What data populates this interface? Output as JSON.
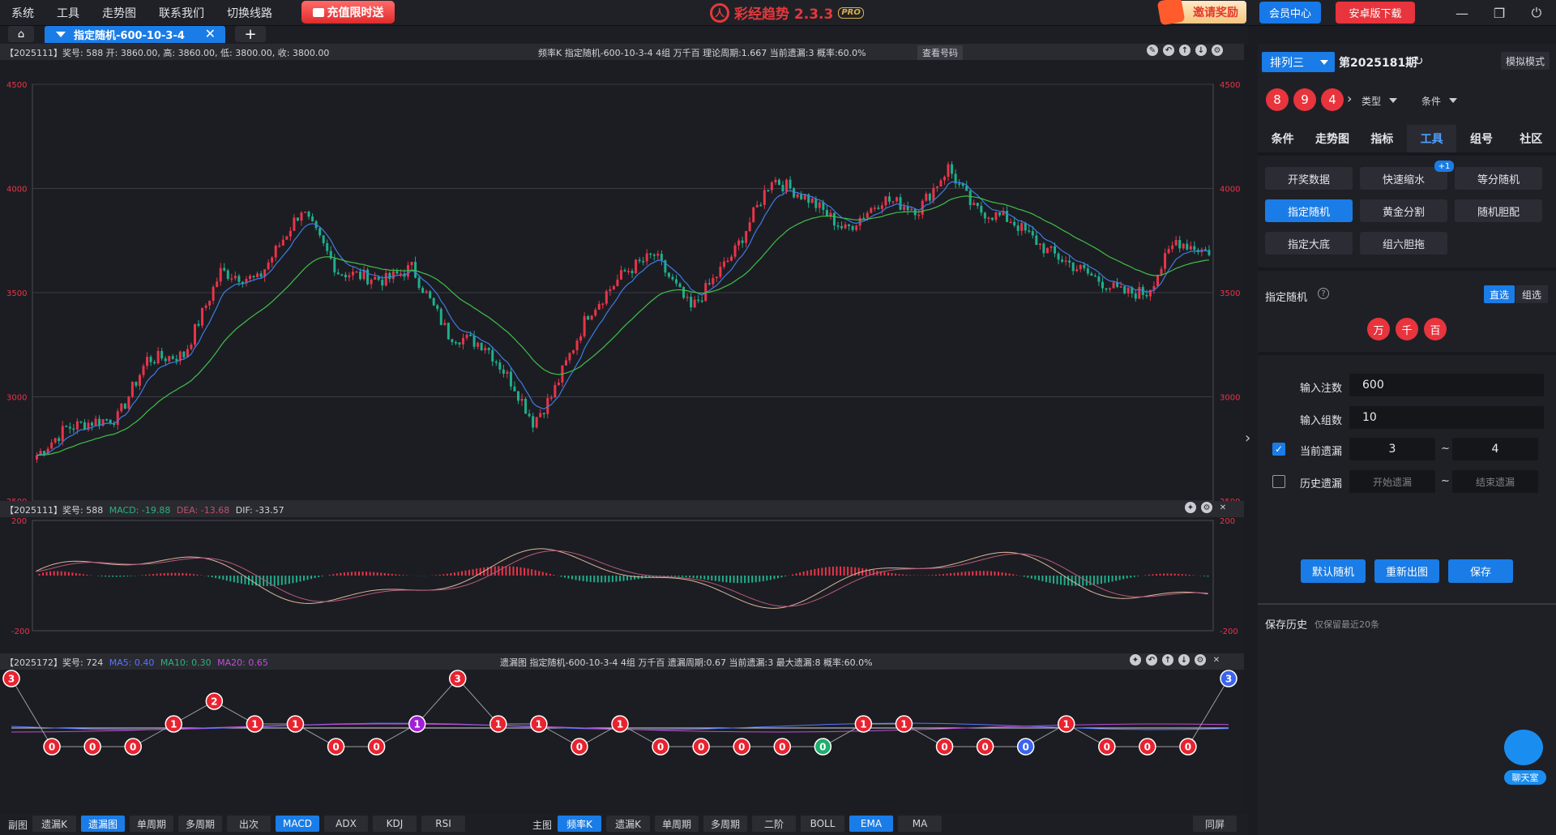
{
  "menu": [
    "系统",
    "工具",
    "走势图",
    "联系我们",
    "切换线路"
  ],
  "promo_label": "充值限时送",
  "app": {
    "name": "彩经趋势 2.3.3",
    "badge": "PRO"
  },
  "invite_label": "邀请奖励",
  "vip_label": "会员中心",
  "android_label": "安卓版下载",
  "tab": {
    "label": "指定随机-600-10-3-4"
  },
  "top_panel": {
    "info": "【2025111】奖号: 588  开: 3860.00, 高: 3860.00, 低: 3800.00, 收: 3800.00",
    "mid": "频率K  指定随机-600-10-3-4  4组  万千百  理论周期:1.667  当前遗漏:3  概率:60.0%",
    "view_button": "查看号码",
    "y_ticks": [
      "4500",
      "4000",
      "3500",
      "3000",
      "2500"
    ]
  },
  "macd_panel": {
    "prefix": "【2025111】奖号: 588",
    "macd": "MACD: -19.88",
    "dea": "DEA: -13.68",
    "dif": "DIF: -33.57",
    "y_ticks": [
      "200",
      "-200"
    ]
  },
  "miss_panel": {
    "prefix": "【2025172】奖号: 724",
    "ma5": "MA5: 0.40",
    "ma10": "MA10: 0.30",
    "ma20": "MA20: 0.65",
    "mid": "遗漏图  指定随机-600-10-3-4  4组  万千百  遗漏周期:0.67  当前遗漏:3  最大遗漏:8  概率:60.0%",
    "points": [
      3,
      0,
      0,
      0,
      1,
      2,
      1,
      1,
      0,
      0,
      1,
      3,
      1,
      1,
      0,
      1,
      0,
      0,
      0,
      0,
      0,
      1,
      1,
      0,
      0,
      0,
      1,
      0,
      0,
      0,
      3
    ]
  },
  "bottom_bar": {
    "sub_label": "副图",
    "sub_buttons": [
      "遗漏K",
      "遗漏图",
      "单周期",
      "多周期",
      "出次",
      "MACD",
      "ADX",
      "KDJ",
      "RSI"
    ],
    "main_label": "主图",
    "main_buttons": [
      "频率K",
      "遗漏K",
      "单周期",
      "多周期",
      "二阶",
      "BOLL",
      "EMA",
      "MA"
    ],
    "full_button": "同屏"
  },
  "side": {
    "lottery": "排列三",
    "period": "第2025181期",
    "mock": "模拟模式",
    "balls": [
      "8",
      "9",
      "4"
    ],
    "type_drop": "类型",
    "cond_drop": "条件",
    "nav": [
      "条件",
      "走势图",
      "指标",
      "工具",
      "组号",
      "社区"
    ],
    "tools": [
      "开奖数据",
      "快速缩水",
      "等分随机",
      "指定随机",
      "黄金分割",
      "随机胆配",
      "指定大底",
      "组六胆拖"
    ],
    "tool_badge": "+1",
    "section": "指定随机",
    "seg_direct": "直选",
    "seg_group": "组选",
    "digits": [
      "万",
      "千",
      "百"
    ],
    "count_label": "输入注数",
    "count_value": "600",
    "group_label": "输入组数",
    "group_value": "10",
    "cur_miss_label": "当前遗漏",
    "cur_miss_from": "3",
    "cur_miss_to": "4",
    "hist_miss_label": "历史遗漏",
    "hist_from_ph": "开始遗漏",
    "hist_to_ph": "结束遗漏",
    "tilde": "~",
    "btn_default": "默认随机",
    "btn_redraw": "重新出图",
    "btn_save": "保存",
    "history_title": "保存历史",
    "history_note": "仅保留最近20条",
    "chat_label": "聊天室"
  },
  "colors": {
    "up": "#e8344b",
    "down": "#1fae8c",
    "ma_blue": "#3d7be6",
    "ma_green": "#3fbf4a",
    "accent": "#1a7ce6"
  },
  "chart_data": [
    {
      "type": "candlestick",
      "name_label": "频率K",
      "ylim": [
        2500,
        4500
      ],
      "y_ticks": [
        2500,
        3000,
        3500,
        4000,
        4500
      ],
      "keypoints_close": [
        [
          0,
          2720
        ],
        [
          8,
          2850
        ],
        [
          15,
          2880
        ],
        [
          22,
          2900
        ],
        [
          30,
          3180
        ],
        [
          40,
          3200
        ],
        [
          50,
          3600
        ],
        [
          60,
          3560
        ],
        [
          72,
          3900
        ],
        [
          82,
          3600
        ],
        [
          95,
          3560
        ],
        [
          102,
          3620
        ],
        [
          112,
          3300
        ],
        [
          122,
          3250
        ],
        [
          130,
          3050
        ],
        [
          135,
          2880
        ],
        [
          140,
          3000
        ],
        [
          150,
          3400
        ],
        [
          160,
          3600
        ],
        [
          168,
          3680
        ],
        [
          178,
          3420
        ],
        [
          190,
          3700
        ],
        [
          200,
          4050
        ],
        [
          210,
          3950
        ],
        [
          220,
          3800
        ],
        [
          230,
          3950
        ],
        [
          240,
          3900
        ],
        [
          248,
          4100
        ],
        [
          255,
          3900
        ],
        [
          265,
          3850
        ],
        [
          275,
          3700
        ],
        [
          285,
          3600
        ],
        [
          295,
          3500
        ],
        [
          302,
          3500
        ],
        [
          310,
          3750
        ],
        [
          318,
          3700
        ]
      ]
    },
    {
      "type": "macd",
      "ylim": [
        -200,
        200
      ],
      "y_ticks": [
        200,
        -200
      ]
    },
    {
      "type": "line",
      "name_label": "遗漏图",
      "values": [
        3,
        0,
        0,
        0,
        1,
        2,
        1,
        1,
        0,
        0,
        1,
        3,
        1,
        1,
        0,
        1,
        0,
        0,
        0,
        0,
        0,
        1,
        1,
        0,
        0,
        0,
        1,
        0,
        0,
        0,
        3
      ]
    }
  ]
}
